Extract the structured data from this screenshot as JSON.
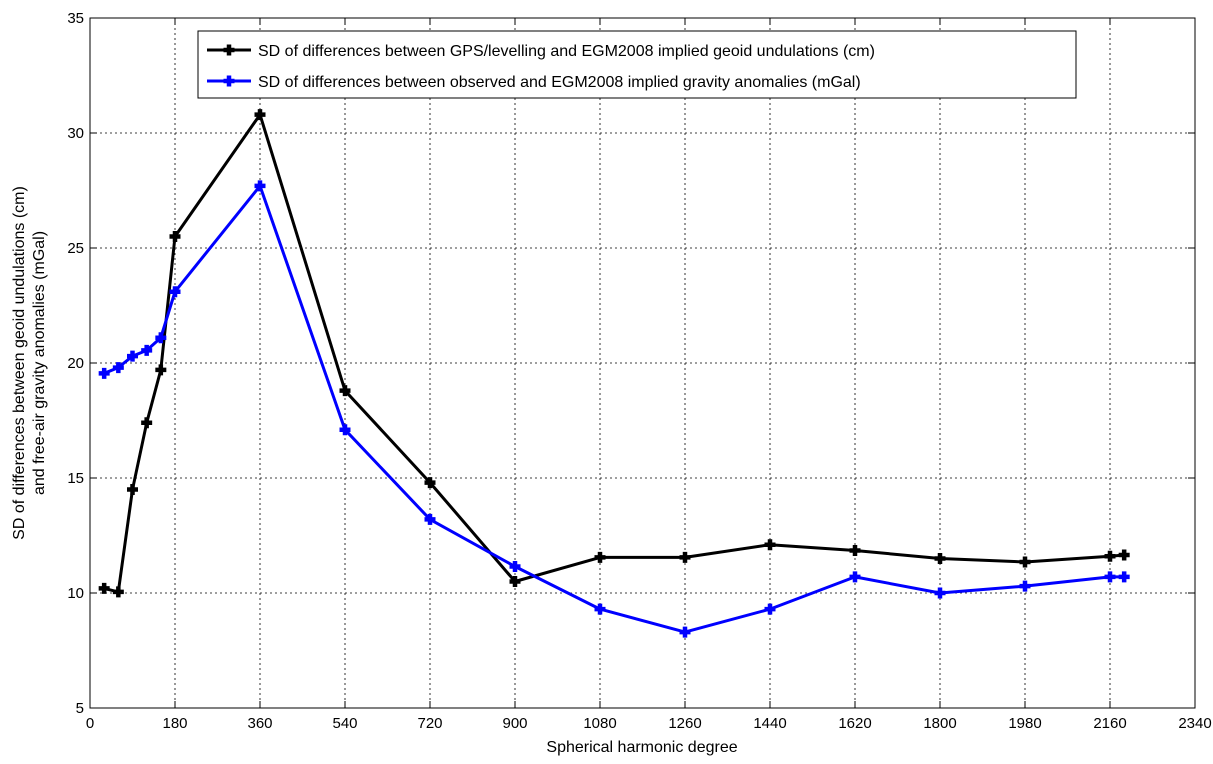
{
  "chart_data": {
    "type": "line",
    "title": "",
    "xlabel": "Spherical harmonic degree",
    "ylabel": "SD of differences between geoid undulations (cm)",
    "ylabel2": "and free-air gravity anomalies (mGal)",
    "xlim": [
      0,
      2340
    ],
    "ylim": [
      5,
      35
    ],
    "xticks": [
      0,
      180,
      360,
      540,
      720,
      900,
      1080,
      1260,
      1440,
      1620,
      1800,
      1980,
      2160,
      2340
    ],
    "yticks": [
      5,
      10,
      15,
      20,
      25,
      30,
      35
    ],
    "grid": true,
    "legend_position": "top-right",
    "series": [
      {
        "name": "SD of differences between GPS/levelling and EGM2008 implied geoid undulations (cm)",
        "color": "#000000",
        "x": [
          30,
          60,
          90,
          120,
          150,
          180,
          360,
          540,
          720,
          900,
          1080,
          1260,
          1440,
          1620,
          1800,
          1980,
          2160,
          2190
        ],
        "y": [
          10.2,
          10.05,
          14.5,
          17.4,
          19.7,
          25.5,
          30.8,
          18.8,
          14.8,
          10.5,
          11.55,
          11.55,
          12.1,
          11.85,
          11.5,
          11.35,
          11.6,
          11.65
        ]
      },
      {
        "name": "SD of differences between observed and EGM2008 implied gravity anomalies (mGal)",
        "color": "#0000ff",
        "x": [
          30,
          60,
          90,
          120,
          150,
          180,
          360,
          540,
          720,
          900,
          1080,
          1260,
          1440,
          1620,
          1800,
          1980,
          2160,
          2190
        ],
        "y": [
          19.55,
          19.8,
          20.3,
          20.55,
          21.1,
          23.1,
          27.7,
          17.1,
          13.2,
          11.15,
          9.3,
          8.3,
          9.3,
          10.7,
          10.0,
          10.3,
          10.7,
          10.7
        ]
      }
    ]
  }
}
